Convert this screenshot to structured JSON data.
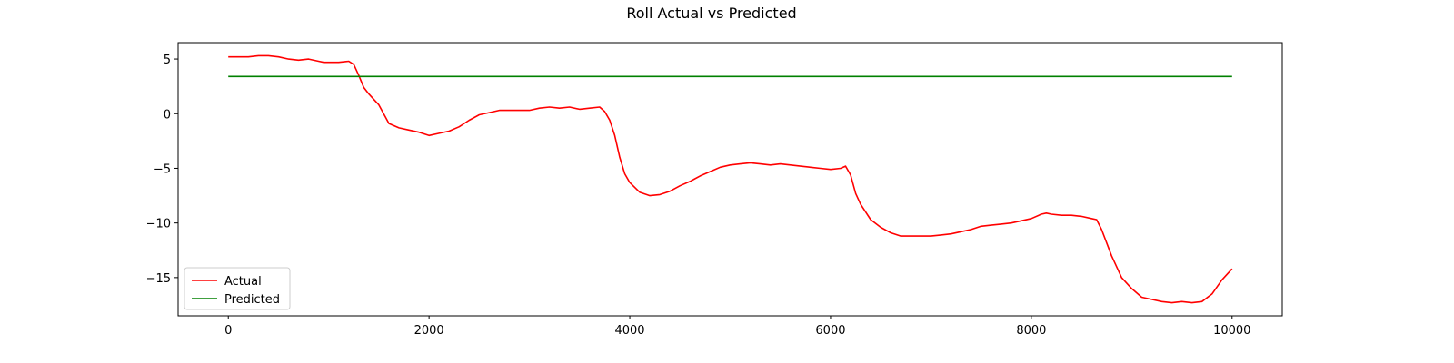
{
  "chart_data": {
    "type": "line",
    "title": "Roll Actual vs Predicted",
    "xlabel": "",
    "ylabel": "",
    "xlim": [
      -500,
      10500
    ],
    "ylim": [
      -18.5,
      6.5
    ],
    "xticks": [
      0,
      2000,
      4000,
      6000,
      8000,
      10000
    ],
    "xtick_labels": [
      "0",
      "2000",
      "4000",
      "6000",
      "8000",
      "10000"
    ],
    "yticks": [
      5,
      0,
      -5,
      -10,
      -15
    ],
    "ytick_labels": [
      "5",
      "0",
      "−5",
      "−10",
      "−15"
    ],
    "grid": false,
    "legend_position": "lower-left",
    "series": [
      {
        "name": "Actual",
        "color": "#ff0000",
        "x": [
          0,
          100,
          200,
          300,
          350,
          400,
          500,
          600,
          700,
          800,
          900,
          950,
          1000,
          1100,
          1200,
          1250,
          1300,
          1350,
          1400,
          1500,
          1600,
          1700,
          1800,
          1900,
          2000,
          2100,
          2200,
          2300,
          2400,
          2500,
          2600,
          2700,
          2800,
          2900,
          3000,
          3100,
          3200,
          3300,
          3400,
          3500,
          3600,
          3700,
          3750,
          3800,
          3850,
          3900,
          3950,
          4000,
          4100,
          4200,
          4300,
          4400,
          4500,
          4600,
          4700,
          4800,
          4900,
          5000,
          5100,
          5200,
          5300,
          5400,
          5500,
          5600,
          5700,
          5800,
          5900,
          6000,
          6100,
          6150,
          6200,
          6250,
          6300,
          6400,
          6500,
          6600,
          6700,
          6800,
          6900,
          7000,
          7100,
          7200,
          7300,
          7400,
          7500,
          7600,
          7700,
          7800,
          7900,
          8000,
          8100,
          8150,
          8200,
          8300,
          8400,
          8500,
          8600,
          8650,
          8700,
          8750,
          8800,
          8900,
          9000,
          9100,
          9200,
          9300,
          9400,
          9500,
          9600,
          9700,
          9800,
          9900,
          10000
        ],
        "y": [
          5.2,
          5.2,
          5.2,
          5.3,
          5.3,
          5.3,
          5.2,
          5.0,
          4.9,
          5.0,
          4.8,
          4.7,
          4.7,
          4.7,
          4.8,
          4.5,
          3.5,
          2.4,
          1.8,
          0.8,
          -0.9,
          -1.3,
          -1.5,
          -1.7,
          -2.0,
          -1.8,
          -1.6,
          -1.2,
          -0.6,
          -0.1,
          0.1,
          0.3,
          0.3,
          0.3,
          0.3,
          0.5,
          0.6,
          0.5,
          0.6,
          0.4,
          0.5,
          0.6,
          0.2,
          -0.6,
          -2.0,
          -4.0,
          -5.5,
          -6.3,
          -7.2,
          -7.5,
          -7.4,
          -7.1,
          -6.6,
          -6.2,
          -5.7,
          -5.3,
          -4.9,
          -4.7,
          -4.6,
          -4.5,
          -4.6,
          -4.7,
          -4.6,
          -4.7,
          -4.8,
          -4.9,
          -5.0,
          -5.1,
          -5.0,
          -4.8,
          -5.6,
          -7.3,
          -8.3,
          -9.7,
          -10.4,
          -10.9,
          -11.2,
          -11.2,
          -11.2,
          -11.2,
          -11.1,
          -11.0,
          -10.8,
          -10.6,
          -10.3,
          -10.2,
          -10.1,
          -10.0,
          -9.8,
          -9.6,
          -9.2,
          -9.1,
          -9.2,
          -9.3,
          -9.3,
          -9.4,
          -9.6,
          -9.7,
          -10.6,
          -11.8,
          -13.0,
          -15.0,
          -16.0,
          -16.8,
          -17.0,
          -17.2,
          -17.3,
          -17.2,
          -17.3,
          -17.2,
          -16.5,
          -15.2,
          -14.2
        ]
      },
      {
        "name": "Predicted",
        "color": "#008000",
        "x": [
          0,
          10000
        ],
        "y": [
          3.4,
          3.4
        ]
      }
    ]
  }
}
